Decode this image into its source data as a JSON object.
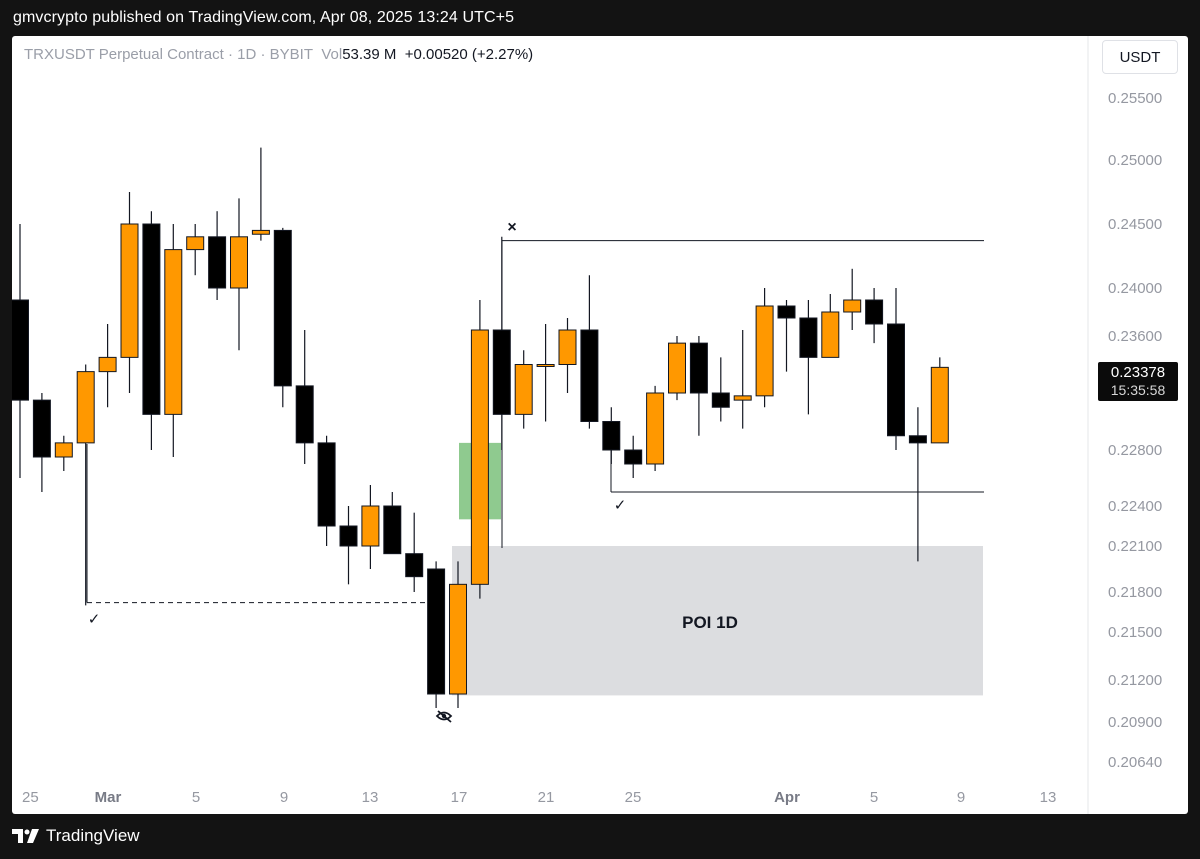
{
  "caption": "gmvcrypto published on TradingView.com, Apr 08, 2025 13:24 UTC+5",
  "legend": {
    "symbol": "TRXUSDT Perpetual Contract · 1D · BYBIT",
    "vol_label": "Vol",
    "vol_value": "53.39 M",
    "change": "+0.00520 (+2.27%)"
  },
  "unit": "USDT",
  "last_price": "0.23378",
  "countdown": "15:35:58",
  "brand": "TradingView",
  "colors": {
    "up": "#ff9800",
    "down": "#000000",
    "zone": "#dcdde0",
    "green_box": "#8fca8f"
  },
  "chart_data": {
    "type": "candlestick",
    "y_axis_ticks": [
      "0.25500",
      "0.25000",
      "0.24500",
      "0.24000",
      "0.23600",
      "0.22800",
      "0.22400",
      "0.22100",
      "0.21800",
      "0.21500",
      "0.21200",
      "0.20900",
      "0.20640"
    ],
    "x_axis_ticks": [
      "25",
      "Mar",
      "5",
      "9",
      "13",
      "17",
      "21",
      "25",
      "Apr",
      "5",
      "9",
      "13"
    ],
    "candles": [
      {
        "d": "Feb 26",
        "o": 0.239,
        "h": 0.245,
        "l": 0.226,
        "c": 0.2315
      },
      {
        "d": "Feb 27",
        "o": 0.2315,
        "h": 0.232,
        "l": 0.225,
        "c": 0.2275
      },
      {
        "d": "Feb 28",
        "o": 0.2275,
        "h": 0.229,
        "l": 0.2265,
        "c": 0.2285
      },
      {
        "d": "Mar 1",
        "o": 0.2285,
        "h": 0.234,
        "l": 0.217,
        "c": 0.2335
      },
      {
        "d": "Mar 2",
        "o": 0.2335,
        "h": 0.237,
        "l": 0.231,
        "c": 0.2345
      },
      {
        "d": "Mar 3",
        "o": 0.2345,
        "h": 0.2475,
        "l": 0.232,
        "c": 0.245
      },
      {
        "d": "Mar 4",
        "o": 0.245,
        "h": 0.246,
        "l": 0.228,
        "c": 0.2305
      },
      {
        "d": "Mar 5",
        "o": 0.2305,
        "h": 0.245,
        "l": 0.2275,
        "c": 0.243
      },
      {
        "d": "Mar 6",
        "o": 0.243,
        "h": 0.245,
        "l": 0.241,
        "c": 0.244
      },
      {
        "d": "Mar 7",
        "o": 0.244,
        "h": 0.246,
        "l": 0.239,
        "c": 0.24
      },
      {
        "d": "Mar 8",
        "o": 0.24,
        "h": 0.247,
        "l": 0.235,
        "c": 0.244
      },
      {
        "d": "Mar 9",
        "o": 0.2442,
        "h": 0.251,
        "l": 0.2437,
        "c": 0.2445
      },
      {
        "d": "Mar 10",
        "o": 0.2445,
        "h": 0.2447,
        "l": 0.231,
        "c": 0.2325
      },
      {
        "d": "Mar 11",
        "o": 0.2325,
        "h": 0.2365,
        "l": 0.227,
        "c": 0.2285
      },
      {
        "d": "Mar 12",
        "o": 0.2285,
        "h": 0.229,
        "l": 0.221,
        "c": 0.2225
      },
      {
        "d": "Mar 13",
        "o": 0.2225,
        "h": 0.224,
        "l": 0.2185,
        "c": 0.221
      },
      {
        "d": "Mar 14",
        "o": 0.221,
        "h": 0.2255,
        "l": 0.2195,
        "c": 0.224
      },
      {
        "d": "Mar 15",
        "o": 0.224,
        "h": 0.225,
        "l": 0.2205,
        "c": 0.2205
      },
      {
        "d": "Mar 16",
        "o": 0.2205,
        "h": 0.2235,
        "l": 0.218,
        "c": 0.219
      },
      {
        "d": "Mar 17",
        "o": 0.2195,
        "h": 0.22,
        "l": 0.21,
        "c": 0.211
      },
      {
        "d": "Mar 18",
        "o": 0.211,
        "h": 0.22,
        "l": 0.21,
        "c": 0.2185
      },
      {
        "d": "Mar 19",
        "o": 0.2185,
        "h": 0.239,
        "l": 0.2175,
        "c": 0.2365
      },
      {
        "d": "Mar 20",
        "o": 0.2365,
        "h": 0.244,
        "l": 0.228,
        "c": 0.2305
      },
      {
        "d": "Mar 21",
        "o": 0.2305,
        "h": 0.235,
        "l": 0.2295,
        "c": 0.234
      },
      {
        "d": "Mar 22",
        "o": 0.234,
        "h": 0.237,
        "l": 0.23,
        "c": 0.234
      },
      {
        "d": "Mar 23",
        "o": 0.234,
        "h": 0.2375,
        "l": 0.232,
        "c": 0.2365
      },
      {
        "d": "Mar 24",
        "o": 0.2365,
        "h": 0.241,
        "l": 0.2295,
        "c": 0.23
      },
      {
        "d": "Mar 25",
        "o": 0.23,
        "h": 0.231,
        "l": 0.227,
        "c": 0.228
      },
      {
        "d": "Mar 26",
        "o": 0.228,
        "h": 0.229,
        "l": 0.226,
        "c": 0.227
      },
      {
        "d": "Mar 27",
        "o": 0.227,
        "h": 0.2325,
        "l": 0.2265,
        "c": 0.232
      },
      {
        "d": "Mar 28",
        "o": 0.232,
        "h": 0.236,
        "l": 0.2315,
        "c": 0.2355
      },
      {
        "d": "Mar 29",
        "o": 0.2355,
        "h": 0.236,
        "l": 0.229,
        "c": 0.232
      },
      {
        "d": "Mar 30",
        "o": 0.232,
        "h": 0.2345,
        "l": 0.23,
        "c": 0.231
      },
      {
        "d": "Mar 31",
        "o": 0.2315,
        "h": 0.2365,
        "l": 0.2295,
        "c": 0.2318
      },
      {
        "d": "Apr 1",
        "o": 0.2318,
        "h": 0.24,
        "l": 0.231,
        "c": 0.2385
      },
      {
        "d": "Apr 2",
        "o": 0.2385,
        "h": 0.239,
        "l": 0.2335,
        "c": 0.2375
      },
      {
        "d": "Apr 3",
        "o": 0.2375,
        "h": 0.239,
        "l": 0.2305,
        "c": 0.2345
      },
      {
        "d": "Apr 4",
        "o": 0.2345,
        "h": 0.2395,
        "l": 0.2345,
        "c": 0.238
      },
      {
        "d": "Apr 5",
        "o": 0.238,
        "h": 0.2415,
        "l": 0.2365,
        "c": 0.239
      },
      {
        "d": "Apr 6",
        "o": 0.239,
        "h": 0.24,
        "l": 0.2355,
        "c": 0.237
      },
      {
        "d": "Apr 7",
        "o": 0.237,
        "h": 0.24,
        "l": 0.228,
        "c": 0.229
      },
      {
        "d": "Apr 8",
        "o": 0.229,
        "h": 0.231,
        "l": 0.22,
        "c": 0.2285
      },
      {
        "d": "Apr 9",
        "o": 0.2285,
        "h": 0.2345,
        "l": 0.2285,
        "c": 0.2338
      }
    ],
    "annotations": {
      "poi_zone": {
        "label": "POI 1D",
        "top": 0.221,
        "bottom": 0.2109
      },
      "green_box": {
        "top": 0.2285,
        "bottom": 0.223
      },
      "range_high": 0.2437,
      "range_low": 0.225,
      "dashed_level": 0.2172,
      "marks": [
        "×",
        "✓",
        "✓"
      ]
    }
  }
}
